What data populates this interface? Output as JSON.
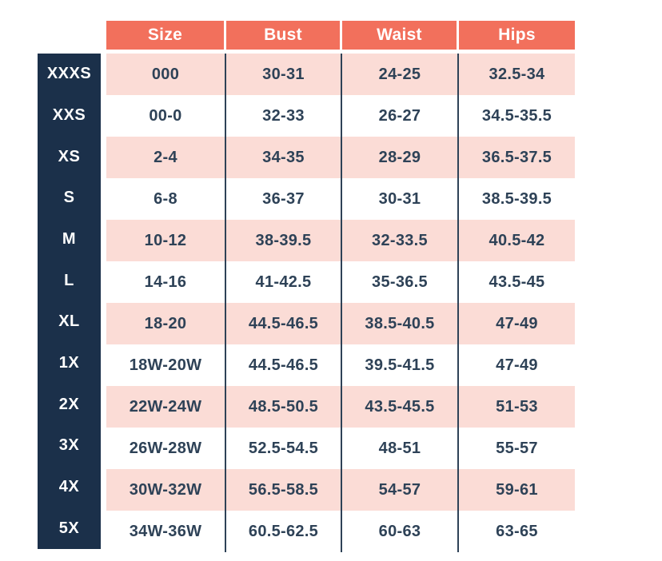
{
  "chart_data": {
    "type": "table",
    "columns": [
      "Size",
      "Bust",
      "Waist",
      "Hips"
    ],
    "row_labels": [
      "XXXS",
      "XXS",
      "XS",
      "S",
      "M",
      "L",
      "XL",
      "1X",
      "2X",
      "3X",
      "4X",
      "5X"
    ],
    "rows": [
      [
        "000",
        "30-31",
        "24-25",
        "32.5-34"
      ],
      [
        "00-0",
        "32-33",
        "26-27",
        "34.5-35.5"
      ],
      [
        "2-4",
        "34-35",
        "28-29",
        "36.5-37.5"
      ],
      [
        "6-8",
        "36-37",
        "30-31",
        "38.5-39.5"
      ],
      [
        "10-12",
        "38-39.5",
        "32-33.5",
        "40.5-42"
      ],
      [
        "14-16",
        "41-42.5",
        "35-36.5",
        "43.5-45"
      ],
      [
        "18-20",
        "44.5-46.5",
        "38.5-40.5",
        "47-49"
      ],
      [
        "18W-20W",
        "44.5-46.5",
        "39.5-41.5",
        "47-49"
      ],
      [
        "22W-24W",
        "48.5-50.5",
        "43.5-45.5",
        "51-53"
      ],
      [
        "26W-28W",
        "52.5-54.5",
        "48-51",
        "55-57"
      ],
      [
        "30W-32W",
        "56.5-58.5",
        "54-57",
        "59-61"
      ],
      [
        "34W-36W",
        "60.5-62.5",
        "60-63",
        "63-65"
      ]
    ]
  },
  "colors": {
    "header_bg": "#F2705C",
    "row_pink": "#FBDCD6",
    "sidebar_bg": "#1B304A",
    "cell_text": "#2E4257",
    "header_text": "#FFFFFF",
    "divider": "#2E4257"
  }
}
